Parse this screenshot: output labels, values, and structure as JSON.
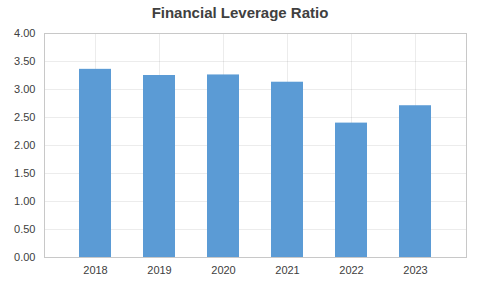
{
  "chart_data": {
    "type": "bar",
    "title": "Financial Leverage Ratio",
    "categories": [
      "2018",
      "2019",
      "2020",
      "2021",
      "2022",
      "2023"
    ],
    "values": [
      3.36,
      3.25,
      3.26,
      3.13,
      2.4,
      2.71
    ],
    "color": "#5B9BD5",
    "ylim": [
      0,
      4.0
    ],
    "yticks": [
      {
        "value": 0.0,
        "label": "0.00"
      },
      {
        "value": 0.5,
        "label": "0.50"
      },
      {
        "value": 1.0,
        "label": "1.00"
      },
      {
        "value": 1.5,
        "label": "1.50"
      },
      {
        "value": 2.0,
        "label": "2.00"
      },
      {
        "value": 2.5,
        "label": "2.50"
      },
      {
        "value": 3.0,
        "label": "3.00"
      },
      {
        "value": 3.5,
        "label": "3.50"
      },
      {
        "value": 4.0,
        "label": "4.00"
      }
    ],
    "grid": true
  }
}
